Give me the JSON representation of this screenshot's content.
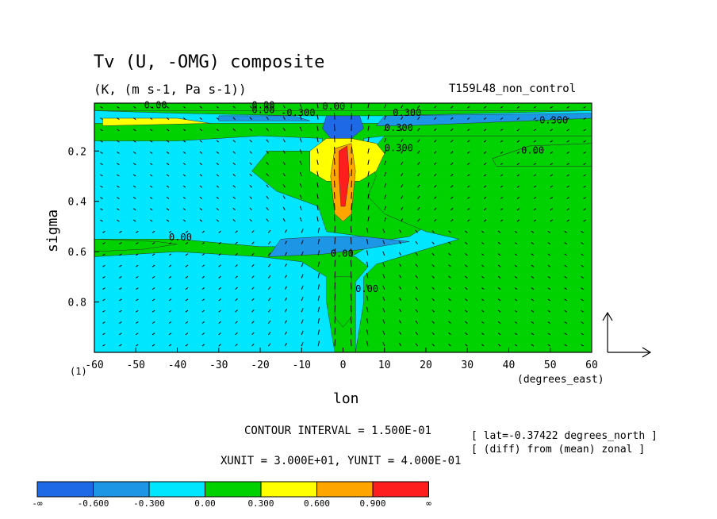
{
  "chart_data": {
    "type": "heatmap",
    "title": "Tv (U, -OMG) composite",
    "units_line": "(K, (m s-1, Pa s-1))",
    "experiment": "T159L48_non_control",
    "xlabel": "lon",
    "xlabel_units": "(degrees_east)",
    "ylabel": "sigma",
    "ylabel_sub": "(1)",
    "xlim": [
      -60,
      60
    ],
    "ylim": [
      1.0,
      0.01
    ],
    "x_ticks": [
      -60,
      -50,
      -40,
      -30,
      -20,
      -10,
      0,
      10,
      20,
      30,
      40,
      50,
      60
    ],
    "y_ticks": [
      0.2,
      0.4,
      0.6,
      0.8
    ],
    "y_tick_labels": [
      "0.2",
      "0.4",
      "0.6",
      "0.8"
    ],
    "contour_interval_text": "CONTOUR INTERVAL = 1.500E-01",
    "vector_units_text": "XUNIT = 3.000E+01, YUNIT = 4.000E-01",
    "info_lines": [
      "[ lat=-0.37422 degrees_north ]",
      "[ (diff) from (mean) zonal ]"
    ],
    "contour_labels": [
      "0.00",
      "0.00",
      "0.00",
      "0.00",
      "-0.300",
      "0.300",
      "0.300",
      "0.300",
      "0.00",
      "0.00",
      "-0.300",
      "0.00",
      "0.00"
    ],
    "colorbar": {
      "labels": [
        "-∞",
        "-0.600",
        "-0.300",
        "0.00",
        "0.300",
        "0.600",
        "0.900",
        "∞"
      ],
      "colors": [
        "#1e6ae6",
        "#1e96e6",
        "#00e6ff",
        "#00d200",
        "#ffff00",
        "#ffa500",
        "#ff1e1e"
      ]
    },
    "colors": {
      "neg2": "#1e6ae6",
      "neg1": "#1e96e6",
      "neg0": "#00e6ff",
      "pos0": "#00d200",
      "pos1": "#ffff00",
      "pos2": "#ffa500",
      "pos3": "#ff1e1e"
    }
  }
}
